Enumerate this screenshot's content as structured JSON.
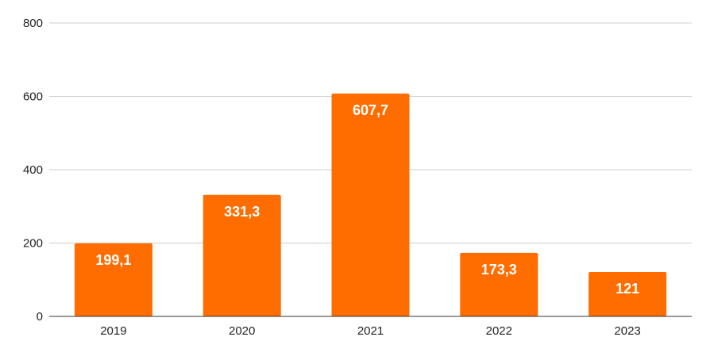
{
  "chart_data": {
    "type": "bar",
    "categories": [
      "2019",
      "2020",
      "2021",
      "2022",
      "2023"
    ],
    "values": [
      199.1,
      331.3,
      607.7,
      173.3,
      121
    ],
    "data_labels": [
      "199,1",
      "331,3",
      "607,7",
      "173,3",
      "121"
    ],
    "y_ticks": [
      0,
      200,
      400,
      600,
      800
    ],
    "ylim": [
      0,
      800
    ],
    "grid": true,
    "legend": "none",
    "bar_color": "#ff6d00"
  }
}
